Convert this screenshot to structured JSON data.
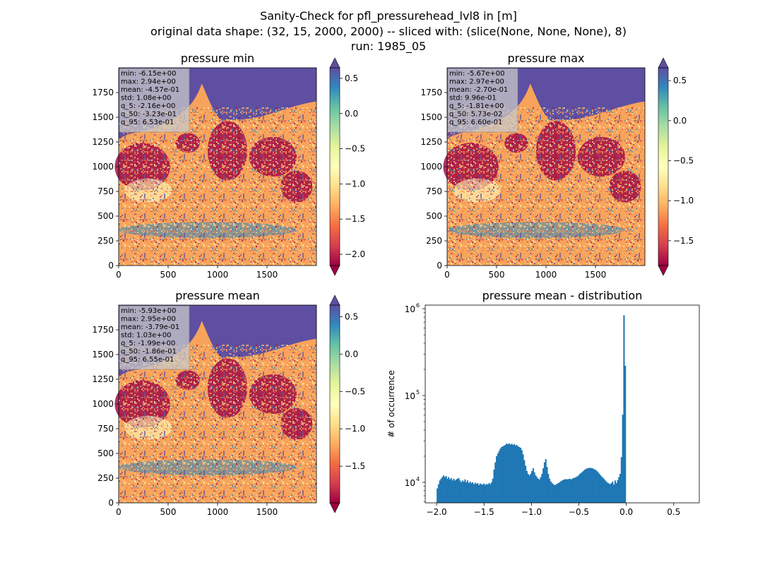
{
  "figure": {
    "title_line1": "Sanity-Check for pfl_pressurehead_lvl8 in [m]",
    "title_line2": "original data shape: (32, 15, 2000, 2000) -- sliced with: (slice(None, None, None), 8)",
    "title_line3": "run: 1985_05"
  },
  "colormap": "Spectral",
  "chart_data": [
    {
      "type": "heatmap",
      "title": "pressure min",
      "x_ticks": [
        0,
        500,
        1000,
        1500
      ],
      "y_ticks": [
        0,
        250,
        500,
        750,
        1000,
        1250,
        1500,
        1750
      ],
      "xlim": [
        0,
        2000
      ],
      "ylim": [
        0,
        2000
      ],
      "colorbar_ticks": [
        "0.5",
        "0.0",
        "−0.5",
        "−1.0",
        "−1.5",
        "−2.0"
      ],
      "colorbar_tick_values": [
        0.5,
        0.0,
        -0.5,
        -1.0,
        -1.5,
        -2.0
      ],
      "colorbar_range": [
        -2.16,
        0.65
      ],
      "stats": [
        "min: -6.15e+00",
        "max: 2.94e+00",
        "mean: -4.57e-01",
        "std: 1.08e+00",
        "q_5: -2.16e+00",
        "q_50: -3.23e-01",
        "q_95: 6.53e-01"
      ]
    },
    {
      "type": "heatmap",
      "title": "pressure max",
      "x_ticks": [
        0,
        500,
        1000,
        1500
      ],
      "y_ticks": [
        0,
        250,
        500,
        750,
        1000,
        1250,
        1500,
        1750
      ],
      "xlim": [
        0,
        2000
      ],
      "ylim": [
        0,
        2000
      ],
      "colorbar_ticks": [
        "0.5",
        "0.0",
        "−0.5",
        "−1.0",
        "−1.5"
      ],
      "colorbar_tick_values": [
        0.5,
        0.0,
        -0.5,
        -1.0,
        -1.5
      ],
      "colorbar_range": [
        -1.81,
        0.66
      ],
      "stats": [
        "min: -5.67e+00",
        "max: 2.97e+00",
        "mean: -2.70e-01",
        "std: 9.96e-01",
        "q_5: -1.81e+00",
        "q_50: 5.73e-02",
        "q_95: 6.60e-01"
      ]
    },
    {
      "type": "heatmap",
      "title": "pressure mean",
      "x_ticks": [
        0,
        500,
        1000,
        1500
      ],
      "y_ticks": [
        0,
        250,
        500,
        750,
        1000,
        1250,
        1500,
        1750
      ],
      "xlim": [
        0,
        2000
      ],
      "ylim": [
        0,
        2000
      ],
      "colorbar_ticks": [
        "0.5",
        "0.0",
        "−0.5",
        "−1.0",
        "−1.5"
      ],
      "colorbar_tick_values": [
        0.5,
        0.0,
        -0.5,
        -1.0,
        -1.5
      ],
      "colorbar_range": [
        -1.99,
        0.655
      ],
      "stats": [
        "min: -5.93e+00",
        "max: 2.95e+00",
        "mean: -3.79e-01",
        "std: 1.03e+00",
        "q_5: -1.99e+00",
        "q_50: -1.86e-01",
        "q_95: 6.55e-01"
      ]
    },
    {
      "type": "bar",
      "title": "pressure mean - distribution",
      "ylabel": "# of occurrence",
      "yscale": "log",
      "xlim": [
        -2.12,
        0.77
      ],
      "ylim": [
        5800,
        1100000
      ],
      "x_ticks": [
        "−2.0",
        "−1.5",
        "−1.0",
        "−0.5",
        "0.0",
        "0.5"
      ],
      "x_tick_values": [
        -2.0,
        -1.5,
        -1.0,
        -0.5,
        0.0,
        0.5
      ],
      "y_ticks": [
        "10",
        "10",
        "10"
      ],
      "y_tick_exponents": [
        "4",
        "5",
        "6"
      ],
      "y_tick_values": [
        10000,
        100000,
        1000000
      ],
      "bar_color": "#1f77b4",
      "bin_start": -2.0,
      "bin_width": 0.0133,
      "bin_counts": [
        8500,
        9500,
        10500,
        11000,
        11500,
        12000,
        11500,
        11800,
        11000,
        11500,
        10800,
        11200,
        10500,
        11000,
        10500,
        10800,
        11000,
        11200,
        10500,
        10000,
        10500,
        10200,
        10800,
        10000,
        10500,
        9800,
        10200,
        9800,
        10000,
        9500,
        9900,
        9600,
        9800,
        9300,
        9700,
        9500,
        9400,
        9700,
        9300,
        9600,
        9400,
        9800,
        9500,
        10000,
        11000,
        14000,
        17000,
        20000,
        21500,
        23000,
        24500,
        25500,
        26000,
        26500,
        27000,
        28000,
        27500,
        28000,
        27200,
        27800,
        27000,
        27500,
        26500,
        27000,
        26000,
        25500,
        25000,
        23500,
        21000,
        18000,
        15500,
        13500,
        12500,
        12000,
        12500,
        13500,
        14500,
        13000,
        12000,
        11500,
        11000,
        10800,
        11500,
        12500,
        14500,
        17000,
        18500,
        15000,
        12500,
        11000,
        10200,
        9800,
        9500,
        9300,
        9400,
        9600,
        9800,
        10000,
        10300,
        10500,
        10700,
        10800,
        10900,
        10800,
        10900,
        11000,
        10800,
        11000,
        11200,
        11300,
        11500,
        11700,
        12000,
        12500,
        12800,
        13200,
        13600,
        14000,
        14300,
        14500,
        14600,
        14700,
        14600,
        14500,
        14300,
        14000,
        13700,
        13300,
        12800,
        12300,
        11800,
        11400,
        11000,
        10600,
        10200,
        9900,
        9700,
        9500,
        9800,
        10200,
        9400,
        10500,
        9800,
        10600,
        11500,
        12500,
        19500,
        60000,
        840000,
        220000
      ]
    }
  ]
}
